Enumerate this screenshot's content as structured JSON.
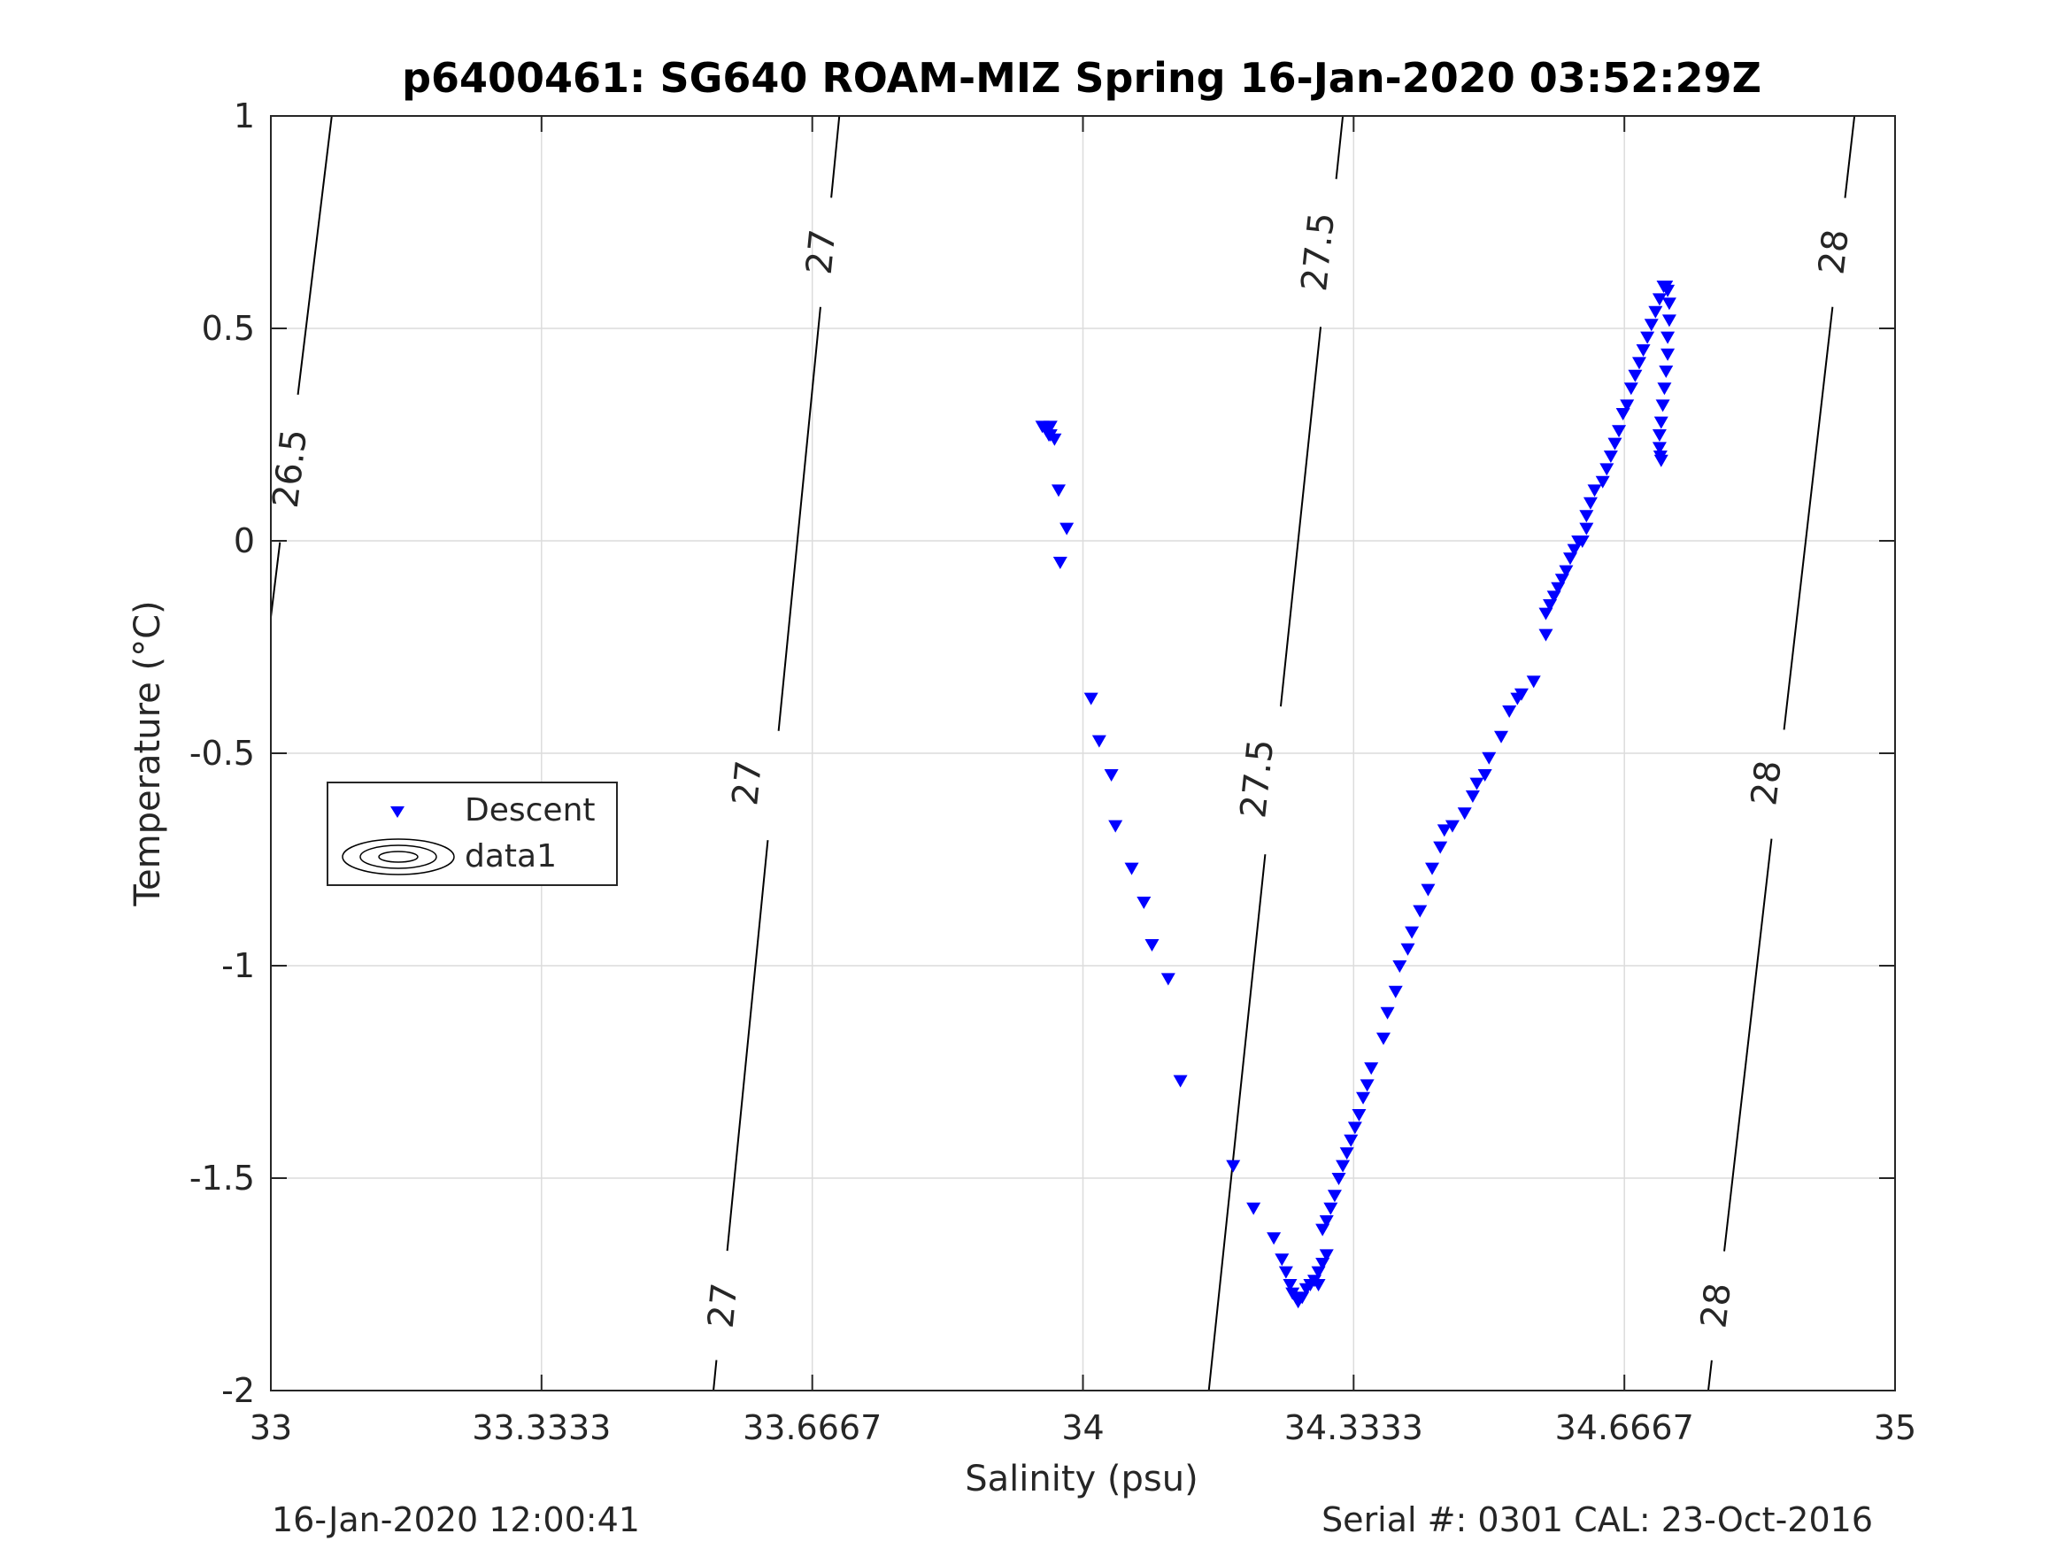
{
  "chart_data": {
    "type": "scatter",
    "title": "p6400461: SG640 ROAM-MIZ Spring 16-Jan-2020 03:52:29Z",
    "xlabel": "Salinity (psu)",
    "ylabel": "Temperature (°C)",
    "xlim": [
      33,
      35
    ],
    "ylim": [
      -2,
      1
    ],
    "xticks": [
      33,
      33.3333,
      33.6667,
      34,
      34.3333,
      34.6667,
      35
    ],
    "xtick_labels": [
      "33",
      "33.3333",
      "33.6667",
      "34",
      "34.3333",
      "34.6667",
      "35"
    ],
    "yticks": [
      -2,
      -1.5,
      -1,
      -0.5,
      0,
      0.5,
      1
    ],
    "ytick_labels": [
      "-2",
      "-1.5",
      "-1",
      "-0.5",
      "0",
      "0.5",
      "1"
    ],
    "grid": true,
    "legend": {
      "placement": "left-middle",
      "entries": [
        "Descent",
        "data1"
      ]
    },
    "series": [
      {
        "name": "Descent",
        "marker": "triangle-down",
        "color": "#0000ff",
        "points": [
          [
            33.95,
            0.27
          ],
          [
            33.96,
            0.27
          ],
          [
            33.955,
            0.26
          ],
          [
            33.96,
            0.25
          ],
          [
            33.965,
            0.24
          ],
          [
            33.958,
            0.25
          ],
          [
            33.97,
            0.12
          ],
          [
            33.98,
            0.03
          ],
          [
            33.972,
            -0.05
          ],
          [
            34.01,
            -0.37
          ],
          [
            34.02,
            -0.47
          ],
          [
            34.035,
            -0.55
          ],
          [
            34.04,
            -0.67
          ],
          [
            34.06,
            -0.77
          ],
          [
            34.075,
            -0.85
          ],
          [
            34.085,
            -0.95
          ],
          [
            34.105,
            -1.03
          ],
          [
            34.12,
            -1.27
          ],
          [
            34.185,
            -1.47
          ],
          [
            34.21,
            -1.57
          ],
          [
            34.235,
            -1.64
          ],
          [
            34.245,
            -1.69
          ],
          [
            34.25,
            -1.72
          ],
          [
            34.255,
            -1.75
          ],
          [
            34.258,
            -1.77
          ],
          [
            34.262,
            -1.78
          ],
          [
            34.265,
            -1.79
          ],
          [
            34.27,
            -1.78
          ],
          [
            34.275,
            -1.76
          ],
          [
            34.28,
            -1.75
          ],
          [
            34.285,
            -1.74
          ],
          [
            34.29,
            -1.75
          ],
          [
            34.29,
            -1.72
          ],
          [
            34.295,
            -1.7
          ],
          [
            34.3,
            -1.68
          ],
          [
            34.295,
            -1.62
          ],
          [
            34.3,
            -1.6
          ],
          [
            34.305,
            -1.57
          ],
          [
            34.31,
            -1.54
          ],
          [
            34.315,
            -1.5
          ],
          [
            34.32,
            -1.47
          ],
          [
            34.325,
            -1.44
          ],
          [
            34.33,
            -1.41
          ],
          [
            34.335,
            -1.38
          ],
          [
            34.34,
            -1.35
          ],
          [
            34.345,
            -1.31
          ],
          [
            34.35,
            -1.28
          ],
          [
            34.355,
            -1.24
          ],
          [
            34.37,
            -1.17
          ],
          [
            34.375,
            -1.11
          ],
          [
            34.385,
            -1.06
          ],
          [
            34.39,
            -1.0
          ],
          [
            34.4,
            -0.96
          ],
          [
            34.405,
            -0.92
          ],
          [
            34.415,
            -0.87
          ],
          [
            34.425,
            -0.82
          ],
          [
            34.43,
            -0.77
          ],
          [
            34.44,
            -0.72
          ],
          [
            34.445,
            -0.68
          ],
          [
            34.455,
            -0.67
          ],
          [
            34.47,
            -0.64
          ],
          [
            34.48,
            -0.6
          ],
          [
            34.485,
            -0.57
          ],
          [
            34.495,
            -0.55
          ],
          [
            34.5,
            -0.51
          ],
          [
            34.515,
            -0.46
          ],
          [
            34.525,
            -0.4
          ],
          [
            34.535,
            -0.37
          ],
          [
            34.54,
            -0.36
          ],
          [
            34.555,
            -0.33
          ],
          [
            34.57,
            -0.22
          ],
          [
            34.57,
            -0.17
          ],
          [
            34.575,
            -0.15
          ],
          [
            34.58,
            -0.13
          ],
          [
            34.585,
            -0.11
          ],
          [
            34.59,
            -0.09
          ],
          [
            34.595,
            -0.07
          ],
          [
            34.6,
            -0.04
          ],
          [
            34.605,
            -0.02
          ],
          [
            34.61,
            0.0
          ],
          [
            34.615,
            0.0
          ],
          [
            34.62,
            0.03
          ],
          [
            34.62,
            0.06
          ],
          [
            34.625,
            0.09
          ],
          [
            34.63,
            0.12
          ],
          [
            34.64,
            0.14
          ],
          [
            34.645,
            0.17
          ],
          [
            34.65,
            0.2
          ],
          [
            34.655,
            0.23
          ],
          [
            34.66,
            0.26
          ],
          [
            34.665,
            0.3
          ],
          [
            34.67,
            0.32
          ],
          [
            34.675,
            0.36
          ],
          [
            34.68,
            0.39
          ],
          [
            34.685,
            0.42
          ],
          [
            34.69,
            0.45
          ],
          [
            34.695,
            0.48
          ],
          [
            34.7,
            0.51
          ],
          [
            34.705,
            0.54
          ],
          [
            34.71,
            0.57
          ],
          [
            34.715,
            0.6
          ],
          [
            34.718,
            0.6
          ],
          [
            34.72,
            0.59
          ],
          [
            34.722,
            0.56
          ],
          [
            34.722,
            0.52
          ],
          [
            34.72,
            0.48
          ],
          [
            34.72,
            0.44
          ],
          [
            34.718,
            0.4
          ],
          [
            34.716,
            0.36
          ],
          [
            34.714,
            0.32
          ],
          [
            34.712,
            0.28
          ],
          [
            34.71,
            0.25
          ],
          [
            34.71,
            0.22
          ],
          [
            34.711,
            0.2
          ],
          [
            34.712,
            0.19
          ]
        ]
      },
      {
        "name": "data1",
        "type": "contour",
        "color": "#000000",
        "lines": [
          {
            "label": "26.5",
            "points": [
              [
                33.0,
                -0.18
              ],
              [
                33.075,
                1.0
              ]
            ],
            "label_positions": [
              [
                33.024,
                0.17
              ]
            ]
          },
          {
            "label": "27",
            "points": [
              [
                33.545,
                -2.0
              ],
              [
                33.7,
                1.0
              ]
            ],
            "label_positions": [
              [
                33.557,
                -1.8
              ],
              [
                33.587,
                -0.57
              ],
              [
                33.678,
                0.68
              ]
            ]
          },
          {
            "label": "27.5",
            "points": [
              [
                34.155,
                -2.0
              ],
              [
                34.32,
                1.0
              ]
            ],
            "label_positions": [
              [
                34.215,
                -0.56
              ],
              [
                34.29,
                0.68
              ]
            ]
          },
          {
            "label": "28",
            "points": [
              [
                34.77,
                -2.0
              ],
              [
                34.95,
                1.0
              ]
            ],
            "label_positions": [
              [
                34.78,
                -1.8
              ],
              [
                34.842,
                -0.57
              ],
              [
                34.925,
                0.68
              ]
            ]
          }
        ]
      }
    ],
    "footer_left": "16-Jan-2020 12:00:41",
    "footer_right": "Serial #: 0301  CAL: 23-Oct-2016"
  },
  "colors": {
    "marker": "#0000ff",
    "grid": "#dcdcdc",
    "axis": "#262626",
    "contour": "#000000"
  }
}
